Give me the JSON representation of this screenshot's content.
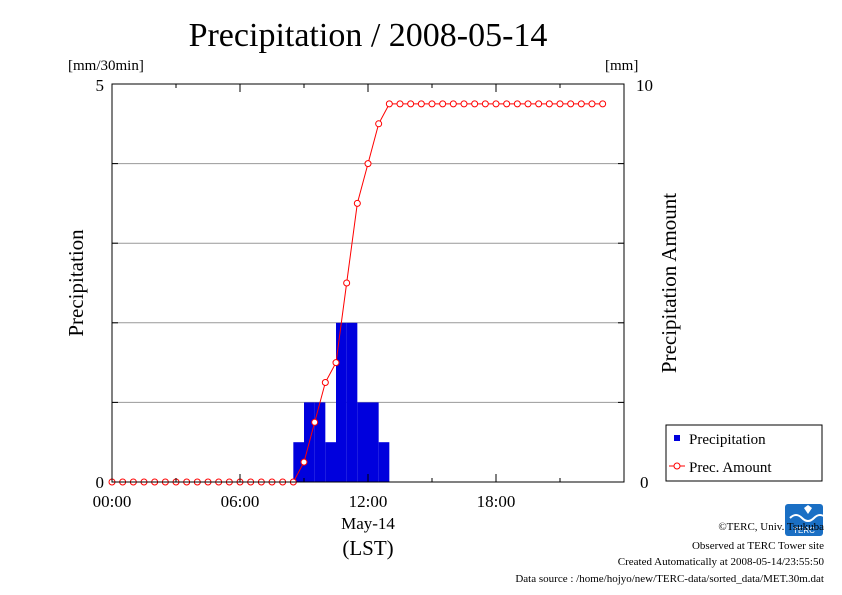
{
  "chart_data": {
    "type": "bar",
    "title": "Precipitation / 2008-05-14",
    "xlabel_date": "May-14",
    "xlabel_zone": "(LST)",
    "ylabel_left": "Precipitation",
    "ylabel_right": "Precipitation Amount",
    "unit_left": "[mm/30min]",
    "unit_right": "[mm]",
    "x_range_hours": [
      0,
      24
    ],
    "x_ticks": [
      "00:00",
      "06:00",
      "12:00",
      "18:00"
    ],
    "y_left_range": [
      0,
      5
    ],
    "y_left_ticks": [
      "0",
      "5"
    ],
    "y_right_range": [
      0,
      10
    ],
    "y_right_ticks": [
      "0",
      "10"
    ],
    "grid": true,
    "legend_position": "bottom-right",
    "series": [
      {
        "name": "Precipitation",
        "kind": "bar",
        "axis": "left",
        "color": "#0000dd",
        "times": [
          "08:30",
          "09:00",
          "09:30",
          "10:00",
          "10:30",
          "11:00",
          "11:30",
          "12:00",
          "12:30"
        ],
        "values": [
          0.5,
          1.0,
          1.0,
          0.5,
          2.0,
          2.0,
          1.0,
          1.0,
          0.5
        ]
      },
      {
        "name": "Prec. Amount",
        "kind": "line",
        "axis": "right",
        "color": "#ff0000",
        "times": [
          "00:00",
          "00:30",
          "01:00",
          "01:30",
          "02:00",
          "02:30",
          "03:00",
          "03:30",
          "04:00",
          "04:30",
          "05:00",
          "05:30",
          "06:00",
          "06:30",
          "07:00",
          "07:30",
          "08:00",
          "08:30",
          "09:00",
          "09:30",
          "10:00",
          "10:30",
          "11:00",
          "11:30",
          "12:00",
          "12:30",
          "13:00",
          "13:30",
          "14:00",
          "14:30",
          "15:00",
          "15:30",
          "16:00",
          "16:30",
          "17:00",
          "17:30",
          "18:00",
          "18:30",
          "19:00",
          "19:30",
          "20:00",
          "20:30",
          "21:00",
          "21:30",
          "22:00",
          "22:30",
          "23:00"
        ],
        "values": [
          0,
          0,
          0,
          0,
          0,
          0,
          0,
          0,
          0,
          0,
          0,
          0,
          0,
          0,
          0,
          0,
          0,
          0,
          0.5,
          1.5,
          2.5,
          3.0,
          5.0,
          7.0,
          8.0,
          9.0,
          9.5,
          9.5,
          9.5,
          9.5,
          9.5,
          9.5,
          9.5,
          9.5,
          9.5,
          9.5,
          9.5,
          9.5,
          9.5,
          9.5,
          9.5,
          9.5,
          9.5,
          9.5,
          9.5,
          9.5,
          9.5
        ]
      }
    ]
  },
  "footer": {
    "copyright": "©TERC, Univ. Tsukuba",
    "observed": "Observed at TERC Tower site",
    "created": "Created Automatically at 2008-05-14/23:55:50",
    "source": "Data source : /home/hojyo/new/TERC-data/sorted_data/MET.30m.dat"
  },
  "logo": {
    "text": "TERC",
    "color": "#1a6fc4"
  }
}
